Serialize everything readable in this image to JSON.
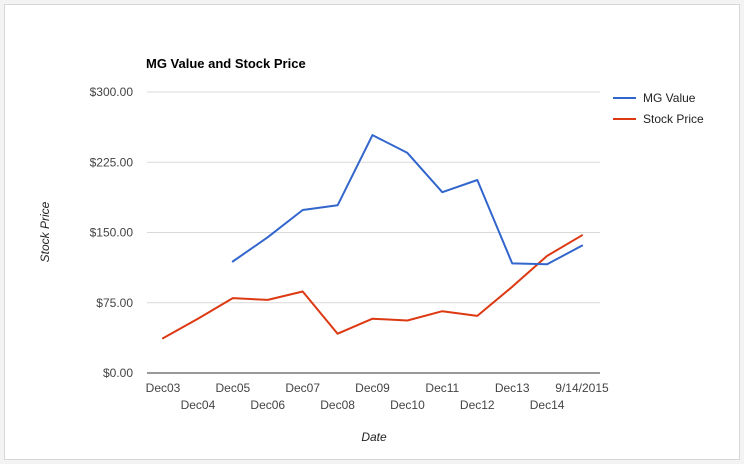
{
  "chart_data": {
    "type": "line",
    "title": "MG Value and Stock Price",
    "xlabel": "Date",
    "ylabel": "Stock Price",
    "categories": [
      "Dec03",
      "Dec04",
      "Dec05",
      "Dec06",
      "Dec07",
      "Dec08",
      "Dec09",
      "Dec10",
      "Dec11",
      "Dec12",
      "Dec13",
      "Dec14",
      "9/14/2015"
    ],
    "ylim": [
      0,
      300
    ],
    "yticks": [
      "$0.00",
      "$75.00",
      "$150.00",
      "$225.00",
      "$300.00"
    ],
    "ytick_values": [
      0,
      75,
      150,
      225,
      300
    ],
    "grid": true,
    "legend_position": "right",
    "series": [
      {
        "name": "MG Value",
        "color": "#3366cc",
        "values": [
          null,
          null,
          119,
          145,
          174,
          179,
          254,
          235,
          193,
          206,
          117,
          116,
          136
        ]
      },
      {
        "name": "Stock Price",
        "color": "#dc3912",
        "values": [
          37,
          58,
          80,
          78,
          87,
          42,
          58,
          56,
          66,
          61,
          92,
          125,
          147
        ]
      }
    ]
  }
}
